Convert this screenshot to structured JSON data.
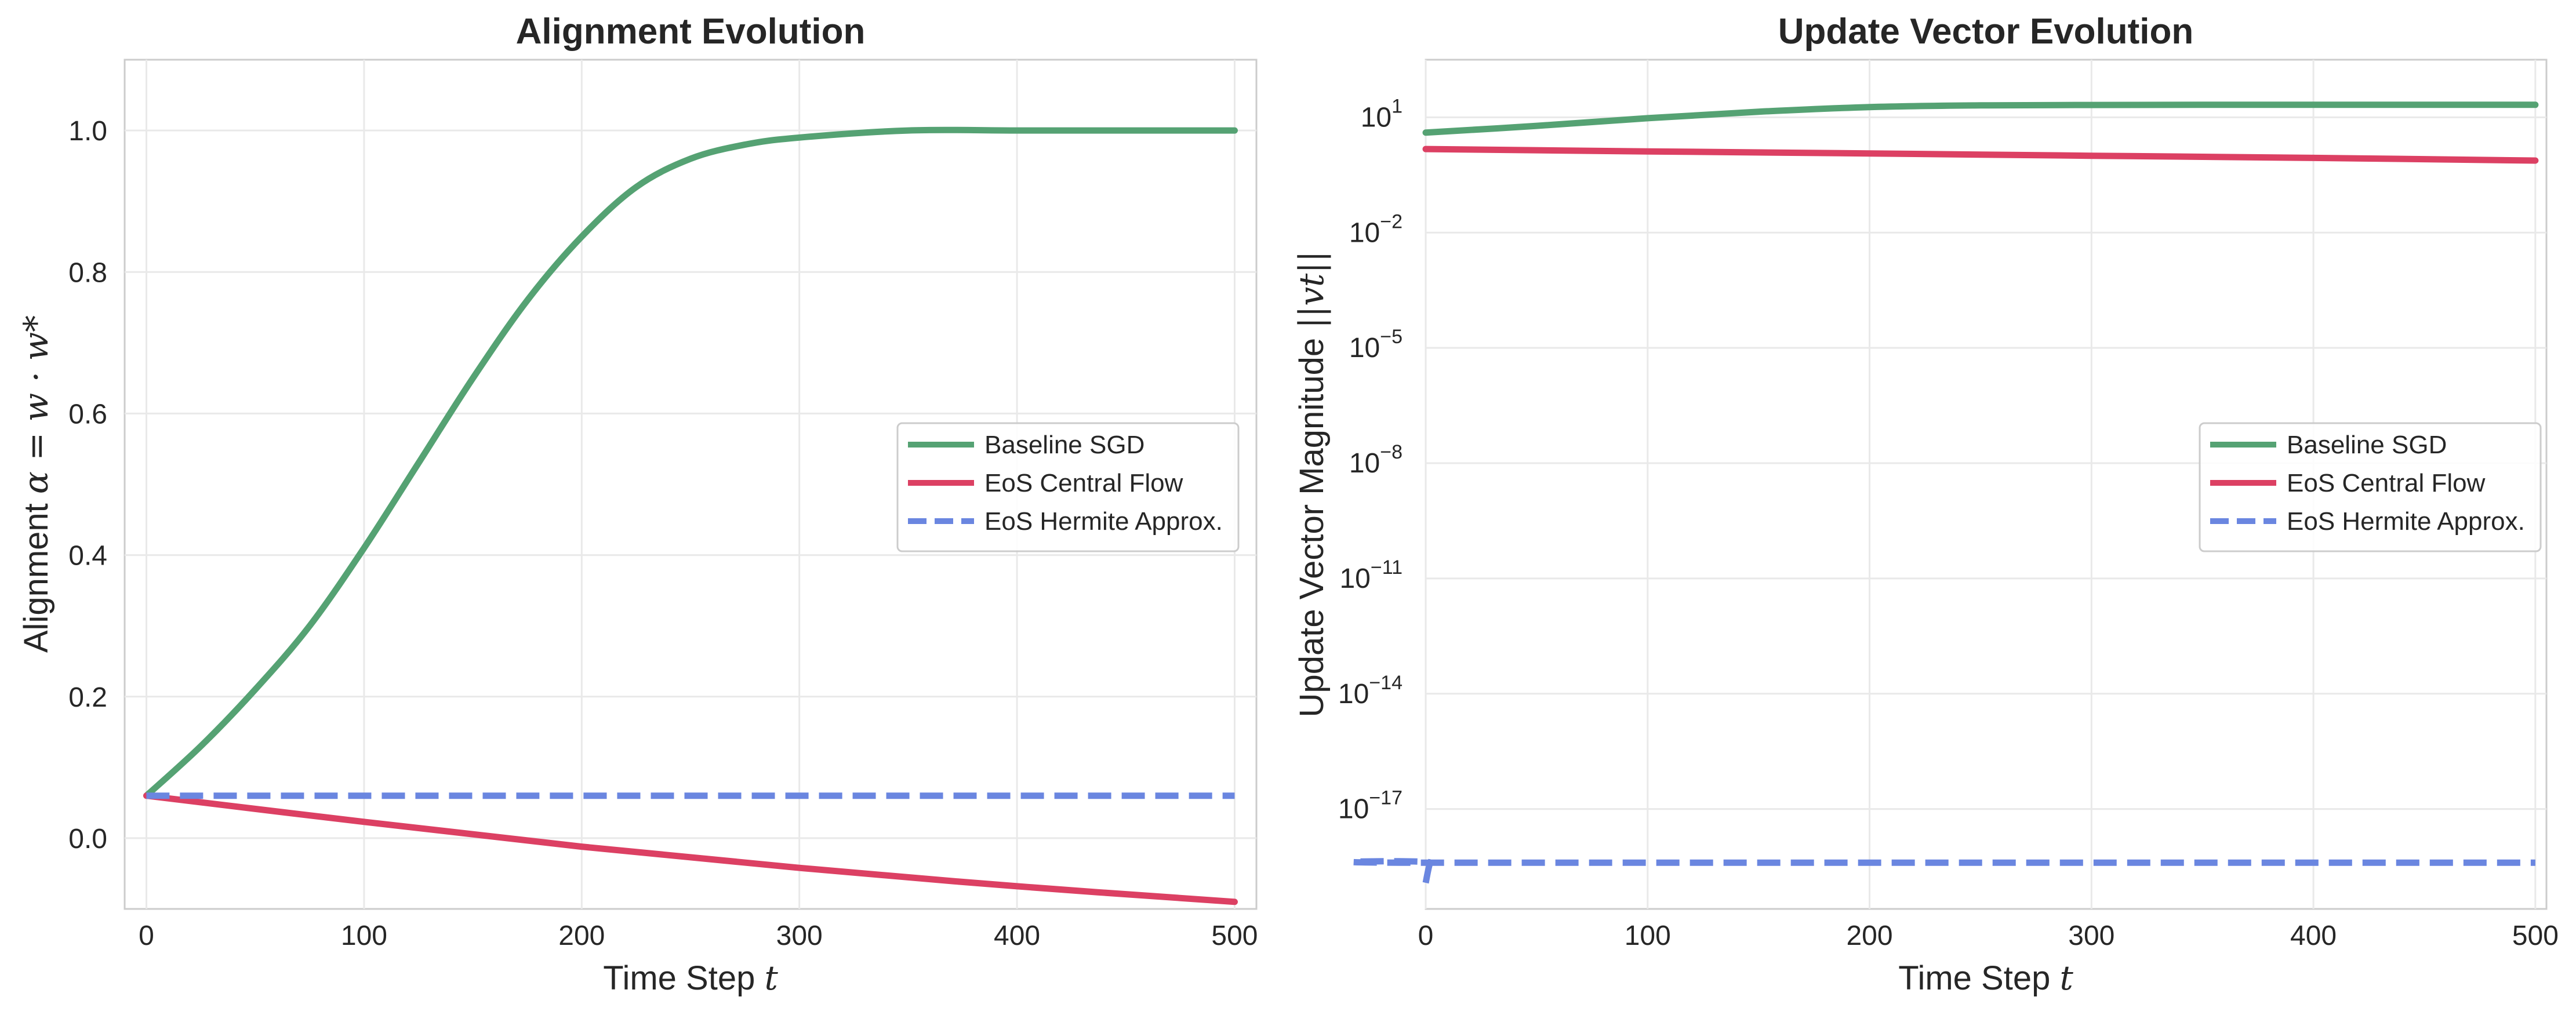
{
  "colors": {
    "baseline": "#55a273",
    "central": "#dc4063",
    "hermite": "#6a86e0"
  },
  "chart_data": [
    {
      "type": "line",
      "title": "Alignment Evolution",
      "xlabel_text": "Time Step ",
      "xlabel_var": "t",
      "ylabel_text": "Alignment ",
      "ylabel_math": "α = w · w*",
      "xlim": [
        -10,
        510
      ],
      "ylim": [
        -0.1,
        1.1
      ],
      "x_ticks": [
        0,
        100,
        200,
        300,
        400,
        500
      ],
      "y_ticks": [
        0.0,
        0.2,
        0.4,
        0.6,
        0.8,
        1.0
      ],
      "y_tick_labels": [
        "0.0",
        "0.2",
        "0.4",
        "0.6",
        "0.8",
        "1.0"
      ],
      "grid": true,
      "legend_position": "center-right",
      "series": [
        {
          "name": "Baseline SGD",
          "style": "solid",
          "x": [
            0,
            25,
            50,
            75,
            100,
            125,
            150,
            175,
            200,
            225,
            250,
            275,
            300,
            350,
            400,
            450,
            500
          ],
          "y": [
            0.06,
            0.13,
            0.21,
            0.3,
            0.41,
            0.53,
            0.65,
            0.76,
            0.85,
            0.92,
            0.96,
            0.98,
            0.99,
            1.0,
            1.0,
            1.0,
            1.0
          ]
        },
        {
          "name": "EoS Central Flow",
          "style": "solid",
          "x": [
            0,
            100,
            200,
            300,
            400,
            500
          ],
          "y": [
            0.06,
            0.023,
            -0.012,
            -0.042,
            -0.068,
            -0.09
          ]
        },
        {
          "name": "EoS Hermite Approx.",
          "style": "dashed",
          "x": [
            0,
            500
          ],
          "y": [
            0.06,
            0.06
          ]
        }
      ]
    },
    {
      "type": "line",
      "title": "Update Vector Evolution",
      "xlabel_text": "Time Step ",
      "xlabel_var": "t",
      "ylabel_text": "Update Vector Magnitude ",
      "ylabel_math": "||vt||",
      "xlim": [
        0,
        505
      ],
      "yscale": "log",
      "ylim_exponent": [
        -19.6,
        2.5
      ],
      "x_ticks": [
        0,
        100,
        200,
        300,
        400,
        500
      ],
      "y_tick_exponents": [
        1,
        -2,
        -5,
        -8,
        -11,
        -14,
        -17
      ],
      "y_tick_base": "10",
      "grid": true,
      "legend_position": "center-right",
      "series": [
        {
          "name": "Baseline SGD",
          "style": "solid",
          "x": [
            0,
            50,
            100,
            150,
            200,
            250,
            300,
            350,
            400,
            450,
            500
          ],
          "y": [
            4.0,
            6.0,
            9.5,
            14.0,
            18.5,
            20.5,
            21.0,
            21.2,
            21.2,
            21.2,
            21.2
          ]
        },
        {
          "name": "EoS Central Flow",
          "style": "solid",
          "x": [
            0,
            100,
            200,
            300,
            400,
            500
          ],
          "y": [
            1.5,
            1.3,
            1.15,
            1.0,
            0.88,
            0.75
          ]
        },
        {
          "name": "EoS Hermite Approx.",
          "style": "dashed",
          "x": [
            0,
            2,
            4,
            500
          ],
          "y": [
            1.2e-19,
            4e-19,
            4e-19,
            4e-19
          ]
        }
      ]
    }
  ]
}
